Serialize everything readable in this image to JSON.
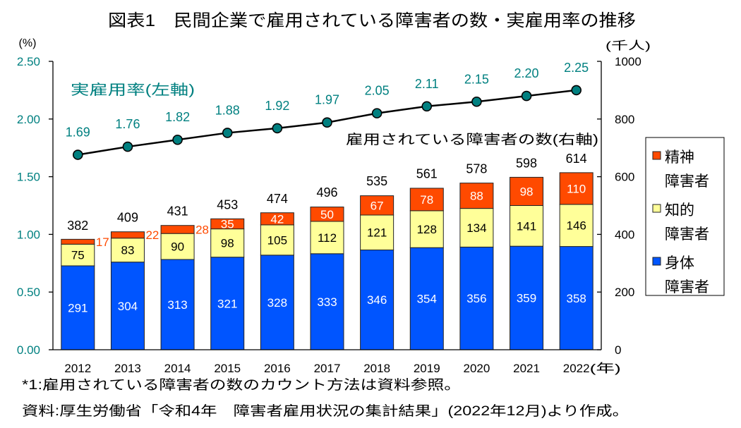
{
  "title": "図表1　民間企業で雇用されている障害者の数・実雇用率の推移",
  "chart_data": {
    "type": "bar",
    "subtype": "stacked bar with line overlay (dual axis)",
    "title": "図表1　民間企業で雇用されている障害者の数・実雇用率の推移",
    "categories": [
      "2012",
      "2013",
      "2014",
      "2015",
      "2016",
      "2017",
      "2018",
      "2019",
      "2020",
      "2021",
      "2022"
    ],
    "x_suffix": "(年)",
    "xlabel": "",
    "left_axis": {
      "unit_label": "(%)",
      "range": [
        0,
        2.5
      ],
      "ticks": [
        "0.00",
        "0.50",
        "1.00",
        "1.50",
        "2.00",
        "2.50"
      ],
      "color": "#008080"
    },
    "right_axis": {
      "unit_label": "(千人)",
      "range": [
        0,
        1000
      ],
      "ticks": [
        "0",
        "200",
        "400",
        "600",
        "800",
        "1000"
      ]
    },
    "grid": false,
    "series": [
      {
        "name": "身体障害者",
        "type": "bar",
        "axis": "right",
        "stack": "employed",
        "color": "#0055ff",
        "label_color": "#ffffff",
        "values": [
          291,
          304,
          313,
          321,
          328,
          333,
          346,
          354,
          356,
          359,
          358
        ]
      },
      {
        "name": "知的障害者",
        "type": "bar",
        "axis": "right",
        "stack": "employed",
        "color": "#ffff99",
        "label_color": "#000000",
        "values": [
          75,
          83,
          90,
          98,
          105,
          112,
          121,
          128,
          134,
          141,
          146
        ]
      },
      {
        "name": "精神障害者",
        "type": "bar",
        "axis": "right",
        "stack": "employed",
        "color": "#ff4a00",
        "label_color": "#ffffff",
        "values": [
          17,
          22,
          28,
          35,
          42,
          50,
          67,
          78,
          88,
          98,
          110
        ]
      },
      {
        "name": "実雇用率",
        "type": "line",
        "axis": "left",
        "color": "#000000",
        "marker_color": "#008080",
        "label_color": "#008080",
        "values": [
          1.69,
          1.76,
          1.82,
          1.88,
          1.92,
          1.97,
          2.05,
          2.11,
          2.15,
          2.2,
          2.25
        ]
      }
    ],
    "totals": [
      382,
      409,
      431,
      453,
      474,
      496,
      535,
      561,
      578,
      598,
      614
    ],
    "annotations": {
      "line_label": "実雇用率(左軸)",
      "bar_label": "雇用されている障害者の数(右軸)"
    },
    "legend": {
      "position": "right",
      "items": [
        {
          "series": "精神障害者",
          "lines": [
            "精神",
            "障害者"
          ],
          "color": "#ff4a00"
        },
        {
          "series": "知的障害者",
          "lines": [
            "知的",
            "障害者"
          ],
          "color": "#ffff99"
        },
        {
          "series": "身体障害者",
          "lines": [
            "身体",
            "障害者"
          ],
          "color": "#0055ff"
        }
      ]
    }
  },
  "footnotes": [
    "*1:雇用されている障害者の数のカウント方法は資料参照。",
    "資料:厚生労働省「令和4年　障害者雇用状況の集計結果」(2022年12月)より作成。"
  ]
}
